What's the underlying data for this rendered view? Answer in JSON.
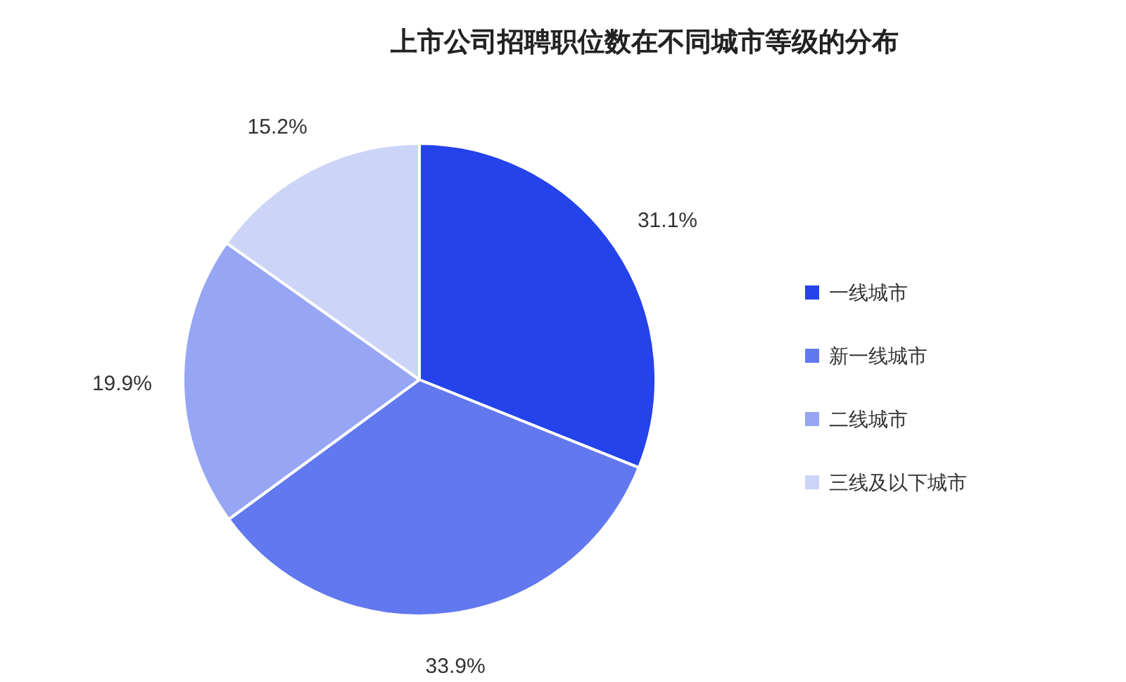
{
  "chart_data": {
    "type": "pie",
    "title": "上市公司招聘职位数在不同城市等级的分布",
    "categories": [
      "一线城市",
      "新一线城市",
      "二线城市",
      "三线及以下城市"
    ],
    "values": [
      31.1,
      33.9,
      19.9,
      15.2
    ],
    "value_labels": [
      "31.1%",
      "33.9%",
      "19.9%",
      "15.2%"
    ],
    "colors": [
      "#2443ea",
      "#6278ee",
      "#96a6f4",
      "#ccd4f8"
    ],
    "legend": "right"
  }
}
